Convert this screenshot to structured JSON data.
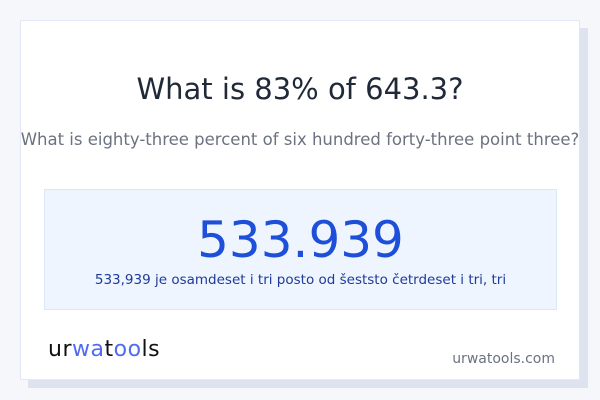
{
  "question": {
    "title": "What is 83% of 643.3?",
    "subtitle": "What is eighty-three percent of six hundred forty-three point three?"
  },
  "result": {
    "value": "533.939",
    "words": "533,939 je osamdeset i tri posto od šeststo četrdeset i tri, tri"
  },
  "brand": {
    "logo_text": "urwatools",
    "logo_accent_color": "#4f6bf0",
    "site": "urwatools.com"
  },
  "colors": {
    "result_value": "#1d4fd8",
    "result_background": "#eef5ff"
  }
}
